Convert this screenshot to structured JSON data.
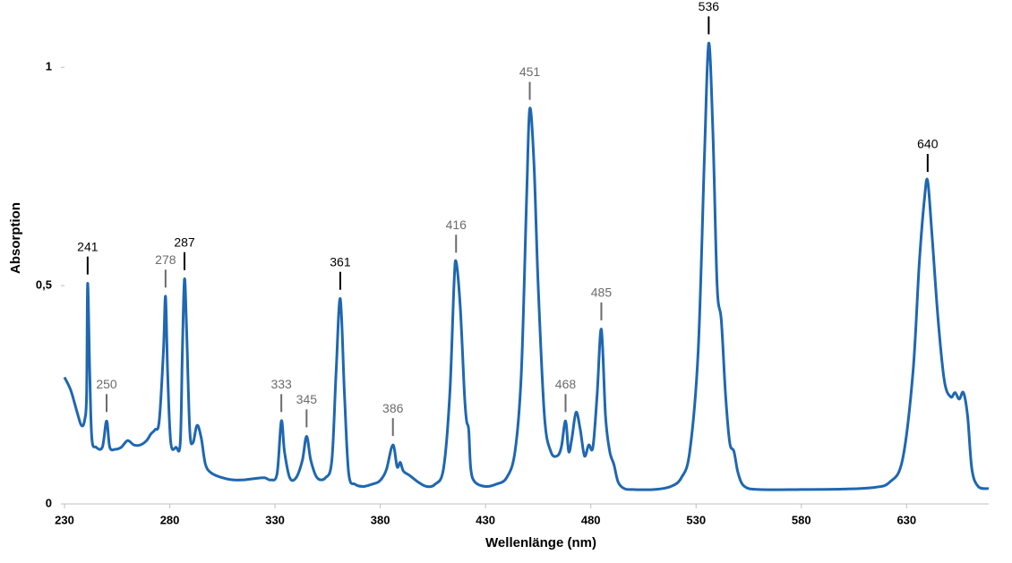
{
  "chart_data": {
    "type": "line",
    "x_label": "Wellenlänge  (nm)",
    "y_label": "Absorption",
    "xlim": [
      230,
      669
    ],
    "ylim": [
      0,
      1.15
    ],
    "xticks": [
      230,
      280,
      330,
      380,
      430,
      480,
      530,
      580,
      630
    ],
    "yticks": [
      0,
      {
        "value": 0.5,
        "label": "0,5"
      },
      1
    ],
    "grid": false,
    "series": [
      {
        "color": "#1f67b1",
        "x": [
          230,
          233,
          236,
          238,
          239.5,
          240.5,
          241,
          242,
          243,
          245,
          248,
          250,
          251.5,
          254,
          257,
          260,
          263,
          266,
          269,
          271,
          273,
          275,
          277,
          278,
          279,
          280.5,
          283,
          285,
          286,
          287,
          288,
          289.5,
          291,
          293,
          295,
          297,
          300,
          305,
          310,
          315,
          320,
          325,
          328,
          331,
          333,
          334.5,
          337,
          340,
          343,
          345,
          347,
          350,
          354,
          357,
          359,
          361,
          363,
          365,
          368,
          372,
          376,
          379,
          381,
          383,
          386,
          388,
          389.5,
          391,
          394,
          398,
          402,
          406,
          410,
          413,
          415,
          416,
          418,
          420,
          421,
          422,
          423,
          425,
          430,
          435,
          440,
          444,
          447,
          449.5,
          451,
          453,
          455,
          458,
          461,
          464,
          466,
          468,
          469.5,
          471,
          473,
          475,
          477,
          479,
          481,
          483,
          485,
          487,
          489,
          491,
          493,
          496,
          500,
          510,
          518,
          523,
          527,
          531,
          534,
          536,
          538,
          540,
          542,
          544,
          546,
          548,
          550,
          553,
          560,
          580,
          600,
          615,
          622,
          628,
          633,
          636,
          638.5,
          640,
          642,
          645,
          648,
          651,
          653,
          655,
          657,
          659,
          661,
          664,
          669
        ],
        "values": [
          0.29,
          0.26,
          0.21,
          0.18,
          0.19,
          0.25,
          0.505,
          0.3,
          0.15,
          0.13,
          0.13,
          0.19,
          0.13,
          0.125,
          0.13,
          0.145,
          0.135,
          0.135,
          0.145,
          0.16,
          0.17,
          0.19,
          0.35,
          0.475,
          0.3,
          0.14,
          0.13,
          0.14,
          0.35,
          0.515,
          0.4,
          0.17,
          0.14,
          0.18,
          0.15,
          0.09,
          0.07,
          0.06,
          0.055,
          0.055,
          0.058,
          0.06,
          0.055,
          0.07,
          0.19,
          0.12,
          0.06,
          0.06,
          0.1,
          0.155,
          0.1,
          0.06,
          0.06,
          0.1,
          0.3,
          0.47,
          0.25,
          0.07,
          0.045,
          0.04,
          0.045,
          0.05,
          0.06,
          0.08,
          0.135,
          0.085,
          0.095,
          0.075,
          0.065,
          0.05,
          0.04,
          0.045,
          0.08,
          0.25,
          0.5,
          0.555,
          0.45,
          0.25,
          0.19,
          0.17,
          0.08,
          0.05,
          0.04,
          0.045,
          0.06,
          0.12,
          0.3,
          0.7,
          0.905,
          0.78,
          0.5,
          0.2,
          0.12,
          0.11,
          0.13,
          0.19,
          0.12,
          0.15,
          0.21,
          0.17,
          0.11,
          0.135,
          0.13,
          0.25,
          0.4,
          0.2,
          0.12,
          0.09,
          0.05,
          0.035,
          0.033,
          0.033,
          0.04,
          0.06,
          0.12,
          0.35,
          0.8,
          1.055,
          0.85,
          0.5,
          0.42,
          0.25,
          0.14,
          0.12,
          0.07,
          0.04,
          0.033,
          0.033,
          0.034,
          0.038,
          0.05,
          0.1,
          0.3,
          0.55,
          0.7,
          0.74,
          0.62,
          0.42,
          0.28,
          0.245,
          0.255,
          0.24,
          0.255,
          0.2,
          0.08,
          0.04,
          0.035
        ]
      }
    ],
    "annotations": [
      {
        "x": 241,
        "y": 0.505,
        "color": "#000000"
      },
      {
        "x": 250,
        "y": 0.19,
        "color": "#6b6b6b"
      },
      {
        "x": 278,
        "y": 0.475,
        "color": "#6b6b6b"
      },
      {
        "x": 287,
        "y": 0.515,
        "color": "#000000"
      },
      {
        "x": 333,
        "y": 0.19,
        "color": "#6b6b6b"
      },
      {
        "x": 345,
        "y": 0.155,
        "color": "#6b6b6b"
      },
      {
        "x": 361,
        "y": 0.47,
        "color": "#000000"
      },
      {
        "x": 386,
        "y": 0.135,
        "color": "#6b6b6b"
      },
      {
        "x": 416,
        "y": 0.555,
        "color": "#6b6b6b"
      },
      {
        "x": 451,
        "y": 0.905,
        "color": "#6b6b6b"
      },
      {
        "x": 468,
        "y": 0.19,
        "color": "#6b6b6b"
      },
      {
        "x": 485,
        "y": 0.4,
        "color": "#6b6b6b"
      },
      {
        "x": 536,
        "y": 1.055,
        "color": "#000000"
      },
      {
        "x": 640,
        "y": 0.74,
        "color": "#000000"
      }
    ]
  }
}
